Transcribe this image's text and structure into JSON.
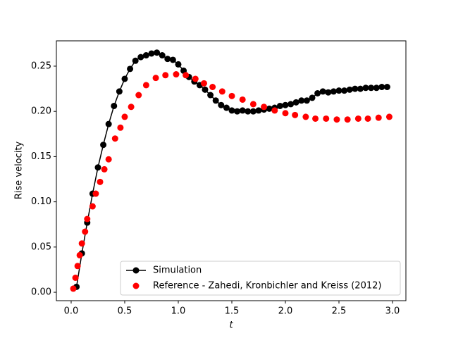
{
  "chart_data": {
    "type": "line",
    "xlabel": "t",
    "ylabel": "Rise velocity",
    "xlim": [
      -0.138,
      3.125
    ],
    "ylim": [
      -0.0093,
      0.278
    ],
    "xticks": [
      {
        "value": 0,
        "label": "0.0"
      },
      {
        "value": 0.5,
        "label": "0.5"
      },
      {
        "value": 1,
        "label": "1.0"
      },
      {
        "value": 1.5,
        "label": "1.5"
      },
      {
        "value": 2,
        "label": "2.0"
      },
      {
        "value": 2.5,
        "label": "2.5"
      },
      {
        "value": 3,
        "label": "3.0"
      }
    ],
    "yticks": [
      {
        "value": 0,
        "label": "0.00"
      },
      {
        "value": 0.05,
        "label": "0.05"
      },
      {
        "value": 0.1,
        "label": "0.10"
      },
      {
        "value": 0.15,
        "label": "0.15"
      },
      {
        "value": 0.2,
        "label": "0.20"
      },
      {
        "value": 0.25,
        "label": "0.25"
      }
    ],
    "grid": false,
    "legend": "lower right",
    "series": [
      {
        "name": "Simulation",
        "color": "#000000",
        "line": true,
        "x": [
          0.05,
          0.1,
          0.15,
          0.2,
          0.25,
          0.3,
          0.35,
          0.4,
          0.45,
          0.5,
          0.55,
          0.6,
          0.65,
          0.7,
          0.75,
          0.8,
          0.85,
          0.9,
          0.95,
          1.0,
          1.05,
          1.1,
          1.15,
          1.2,
          1.25,
          1.3,
          1.35,
          1.4,
          1.45,
          1.5,
          1.55,
          1.6,
          1.65,
          1.7,
          1.75,
          1.8,
          1.85,
          1.9,
          1.95,
          2.0,
          2.05,
          2.1,
          2.15,
          2.2,
          2.25,
          2.3,
          2.35,
          2.4,
          2.45,
          2.5,
          2.55,
          2.6,
          2.65,
          2.7,
          2.75,
          2.8,
          2.85,
          2.9,
          2.95
        ],
        "values": [
          0.006,
          0.043,
          0.077,
          0.109,
          0.138,
          0.163,
          0.186,
          0.206,
          0.222,
          0.236,
          0.247,
          0.256,
          0.26,
          0.262,
          0.264,
          0.265,
          0.262,
          0.258,
          0.257,
          0.252,
          0.245,
          0.238,
          0.233,
          0.229,
          0.224,
          0.218,
          0.212,
          0.207,
          0.204,
          0.201,
          0.2,
          0.201,
          0.2,
          0.2,
          0.201,
          0.202,
          0.203,
          0.204,
          0.206,
          0.207,
          0.208,
          0.21,
          0.212,
          0.212,
          0.215,
          0.22,
          0.222,
          0.221,
          0.222,
          0.223,
          0.223,
          0.224,
          0.225,
          0.225,
          0.226,
          0.226,
          0.226,
          0.227,
          0.227
        ]
      },
      {
        "name": "Reference - Zahedi, Kronbichler and Kreiss (2012)",
        "color": "#ff0000",
        "line": false,
        "x": [
          0.02,
          0.04,
          0.06,
          0.08,
          0.1,
          0.13,
          0.15,
          0.2,
          0.23,
          0.27,
          0.31,
          0.35,
          0.41,
          0.46,
          0.5,
          0.56,
          0.63,
          0.7,
          0.79,
          0.88,
          0.98,
          1.07,
          1.16,
          1.24,
          1.32,
          1.41,
          1.5,
          1.6,
          1.7,
          1.8,
          1.9,
          2.0,
          2.09,
          2.19,
          2.28,
          2.38,
          2.48,
          2.58,
          2.68,
          2.77,
          2.87,
          2.97
        ],
        "values": [
          0.004,
          0.016,
          0.029,
          0.041,
          0.054,
          0.067,
          0.081,
          0.095,
          0.109,
          0.122,
          0.136,
          0.147,
          0.17,
          0.182,
          0.194,
          0.205,
          0.218,
          0.229,
          0.237,
          0.24,
          0.241,
          0.24,
          0.236,
          0.231,
          0.227,
          0.222,
          0.217,
          0.213,
          0.208,
          0.205,
          0.201,
          0.198,
          0.196,
          0.194,
          0.192,
          0.192,
          0.191,
          0.191,
          0.192,
          0.192,
          0.193,
          0.194
        ]
      }
    ]
  }
}
